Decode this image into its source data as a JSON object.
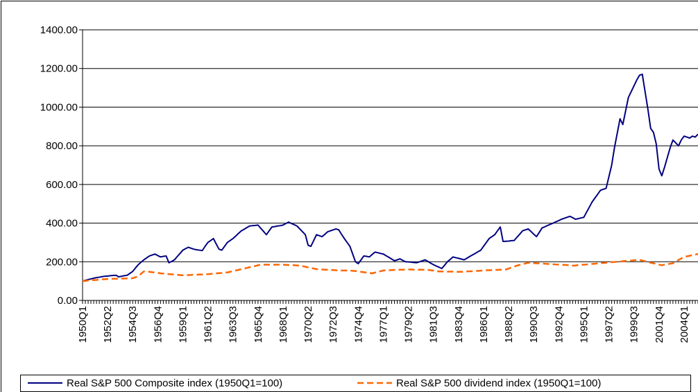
{
  "chart_data": {
    "type": "line",
    "categories": [
      "1950Q1",
      null,
      null,
      null,
      null,
      null,
      null,
      null,
      null,
      "1952Q2",
      null,
      null,
      null,
      null,
      null,
      null,
      null,
      null,
      "1954Q3",
      null,
      null,
      null,
      null,
      null,
      null,
      null,
      null,
      "1956Q4",
      null,
      null,
      null,
      null,
      null,
      null,
      null,
      null,
      "1959Q1",
      null,
      null,
      null,
      null,
      null,
      null,
      null,
      null,
      "1961Q2",
      null,
      null,
      null,
      null,
      null,
      null,
      null,
      null,
      "1963Q3",
      null,
      null,
      null,
      null,
      null,
      null,
      null,
      null,
      "1965Q4",
      null,
      null,
      null,
      null,
      null,
      null,
      null,
      null,
      "1968Q1",
      null,
      null,
      null,
      null,
      null,
      null,
      null,
      null,
      "1970Q2",
      null,
      null,
      null,
      null,
      null,
      null,
      null,
      null,
      "1972Q3",
      null,
      null,
      null,
      null,
      null,
      null,
      null,
      null,
      "1974Q4",
      null,
      null,
      null,
      null,
      null,
      null,
      null,
      null,
      "1977Q1",
      null,
      null,
      null,
      null,
      null,
      null,
      null,
      null,
      "1979Q2",
      null,
      null,
      null,
      null,
      null,
      null,
      null,
      null,
      "1981Q3",
      null,
      null,
      null,
      null,
      null,
      null,
      null,
      null,
      "1983Q4",
      null,
      null,
      null,
      null,
      null,
      null,
      null,
      null,
      "1986Q1",
      null,
      null,
      null,
      null,
      null,
      null,
      null,
      null,
      "1988Q2",
      null,
      null,
      null,
      null,
      null,
      null,
      null,
      null,
      "1990Q3",
      null,
      null,
      null,
      null,
      null,
      null,
      null,
      null,
      "1992Q4",
      null,
      null,
      null,
      null,
      null,
      null,
      null,
      null,
      "1995Q1",
      null,
      null,
      null,
      null,
      null,
      null,
      null,
      null,
      "1997Q2",
      null,
      null,
      null,
      null,
      null,
      null,
      null,
      null,
      "1999Q3",
      null,
      null,
      null,
      null,
      null,
      null,
      null,
      null,
      "2001Q4",
      null,
      null,
      null,
      null,
      null,
      null,
      null,
      null,
      "2004Q1",
      null,
      null,
      null,
      null,
      null
    ],
    "series": [
      {
        "name": "Real S&P 500 Composite index (1950Q1=100)",
        "color": "#000080",
        "dashed": false,
        "values": [
          100,
          104,
          108,
          111,
          115,
          118,
          120,
          123,
          125,
          126,
          128,
          129,
          130,
          122,
          125,
          128,
          130,
          140,
          150,
          168,
          185,
          198,
          210,
          220,
          230,
          235,
          240,
          232,
          225,
          228,
          230,
          195,
          202,
          210,
          227,
          243,
          260,
          268,
          275,
          270,
          265,
          262,
          260,
          258,
          280,
          300,
          310,
          320,
          292,
          265,
          260,
          280,
          300,
          310,
          320,
          333,
          347,
          360,
          368,
          377,
          385,
          387,
          388,
          390,
          373,
          357,
          340,
          360,
          380,
          382,
          385,
          387,
          390,
          398,
          405,
          398,
          392,
          385,
          370,
          355,
          340,
          285,
          280,
          310,
          340,
          335,
          330,
          342,
          355,
          360,
          365,
          370,
          365,
          342,
          320,
          300,
          280,
          240,
          200,
          190,
          210,
          230,
          228,
          225,
          238,
          250,
          247,
          243,
          240,
          231,
          223,
          214,
          205,
          210,
          215,
          207,
          200,
          199,
          198,
          196,
          195,
          200,
          205,
          210,
          202,
          193,
          185,
          178,
          172,
          165,
          182,
          200,
          212,
          225,
          221,
          218,
          214,
          210,
          218,
          227,
          235,
          243,
          252,
          260,
          280,
          300,
          320,
          330,
          340,
          360,
          380,
          305,
          306,
          307,
          309,
          310,
          327,
          343,
          360,
          365,
          370,
          357,
          343,
          330,
          352,
          375,
          381,
          388,
          394,
          400,
          407,
          413,
          420,
          425,
          430,
          435,
          428,
          420,
          423,
          427,
          430,
          457,
          483,
          510,
          530,
          550,
          570,
          575,
          580,
          640,
          700,
          790,
          865,
          940,
          910,
          980,
          1050,
          1080,
          1110,
          1140,
          1165,
          1170,
          1080,
          990,
          890,
          870,
          810,
          680,
          645,
          690,
          740,
          790,
          830,
          815,
          800,
          830,
          850,
          845,
          840,
          850,
          845,
          860
        ]
      },
      {
        "name": "Real S&P 500 dividend index (1950Q1=100)",
        "color": "#ff6600",
        "dashed": true,
        "values": [
          100,
          101,
          103,
          104,
          105,
          106,
          108,
          109,
          110,
          111,
          111,
          112,
          112,
          112,
          113,
          113,
          114,
          114,
          115,
          120,
          125,
          138,
          150,
          149,
          148,
          146,
          145,
          143,
          140,
          139,
          138,
          136,
          135,
          134,
          133,
          131,
          130,
          131,
          131,
          132,
          133,
          133,
          134,
          134,
          135,
          136,
          137,
          139,
          140,
          141,
          142,
          144,
          145,
          148,
          152,
          155,
          158,
          162,
          165,
          168,
          172,
          175,
          178,
          182,
          185,
          185,
          185,
          185,
          185,
          185,
          185,
          185,
          185,
          184,
          183,
          183,
          182,
          181,
          180,
          177,
          174,
          171,
          168,
          165,
          162,
          161,
          160,
          159,
          159,
          158,
          157,
          156,
          155,
          155,
          155,
          155,
          155,
          153,
          152,
          150,
          148,
          146,
          144,
          142,
          140,
          144,
          148,
          151,
          155,
          156,
          156,
          157,
          158,
          158,
          159,
          159,
          160,
          160,
          160,
          159,
          159,
          159,
          159,
          158,
          158,
          156,
          154,
          152,
          150,
          150,
          149,
          149,
          149,
          149,
          148,
          148,
          148,
          149,
          150,
          151,
          151,
          152,
          153,
          154,
          155,
          156,
          156,
          157,
          158,
          158,
          159,
          159,
          160,
          165,
          170,
          175,
          180,
          184,
          188,
          191,
          195,
          194,
          193,
          192,
          192,
          191,
          190,
          189,
          188,
          187,
          186,
          185,
          184,
          184,
          183,
          182,
          180,
          181,
          183,
          184,
          185,
          186,
          188,
          189,
          190,
          191,
          193,
          194,
          195,
          196,
          198,
          199,
          200,
          201,
          203,
          204,
          205,
          206,
          208,
          209,
          210,
          206,
          203,
          199,
          195,
          192,
          189,
          185,
          182,
          185,
          187,
          190,
          192,
          200,
          209,
          217,
          225,
          228,
          231,
          234,
          237,
          240
        ]
      }
    ],
    "ylim": [
      0,
      1400
    ],
    "yticks": [
      {
        "value": 0,
        "label": "0.00"
      },
      {
        "value": 200,
        "label": "200.00"
      },
      {
        "value": 400,
        "label": "400.00"
      },
      {
        "value": 600,
        "label": "600.00"
      },
      {
        "value": 800,
        "label": "800.00"
      },
      {
        "value": 1000,
        "label": "1000.00"
      },
      {
        "value": 1200,
        "label": "1200.00"
      },
      {
        "value": 1400,
        "label": "1400.00"
      }
    ],
    "grid": true,
    "legend": "bottom"
  }
}
